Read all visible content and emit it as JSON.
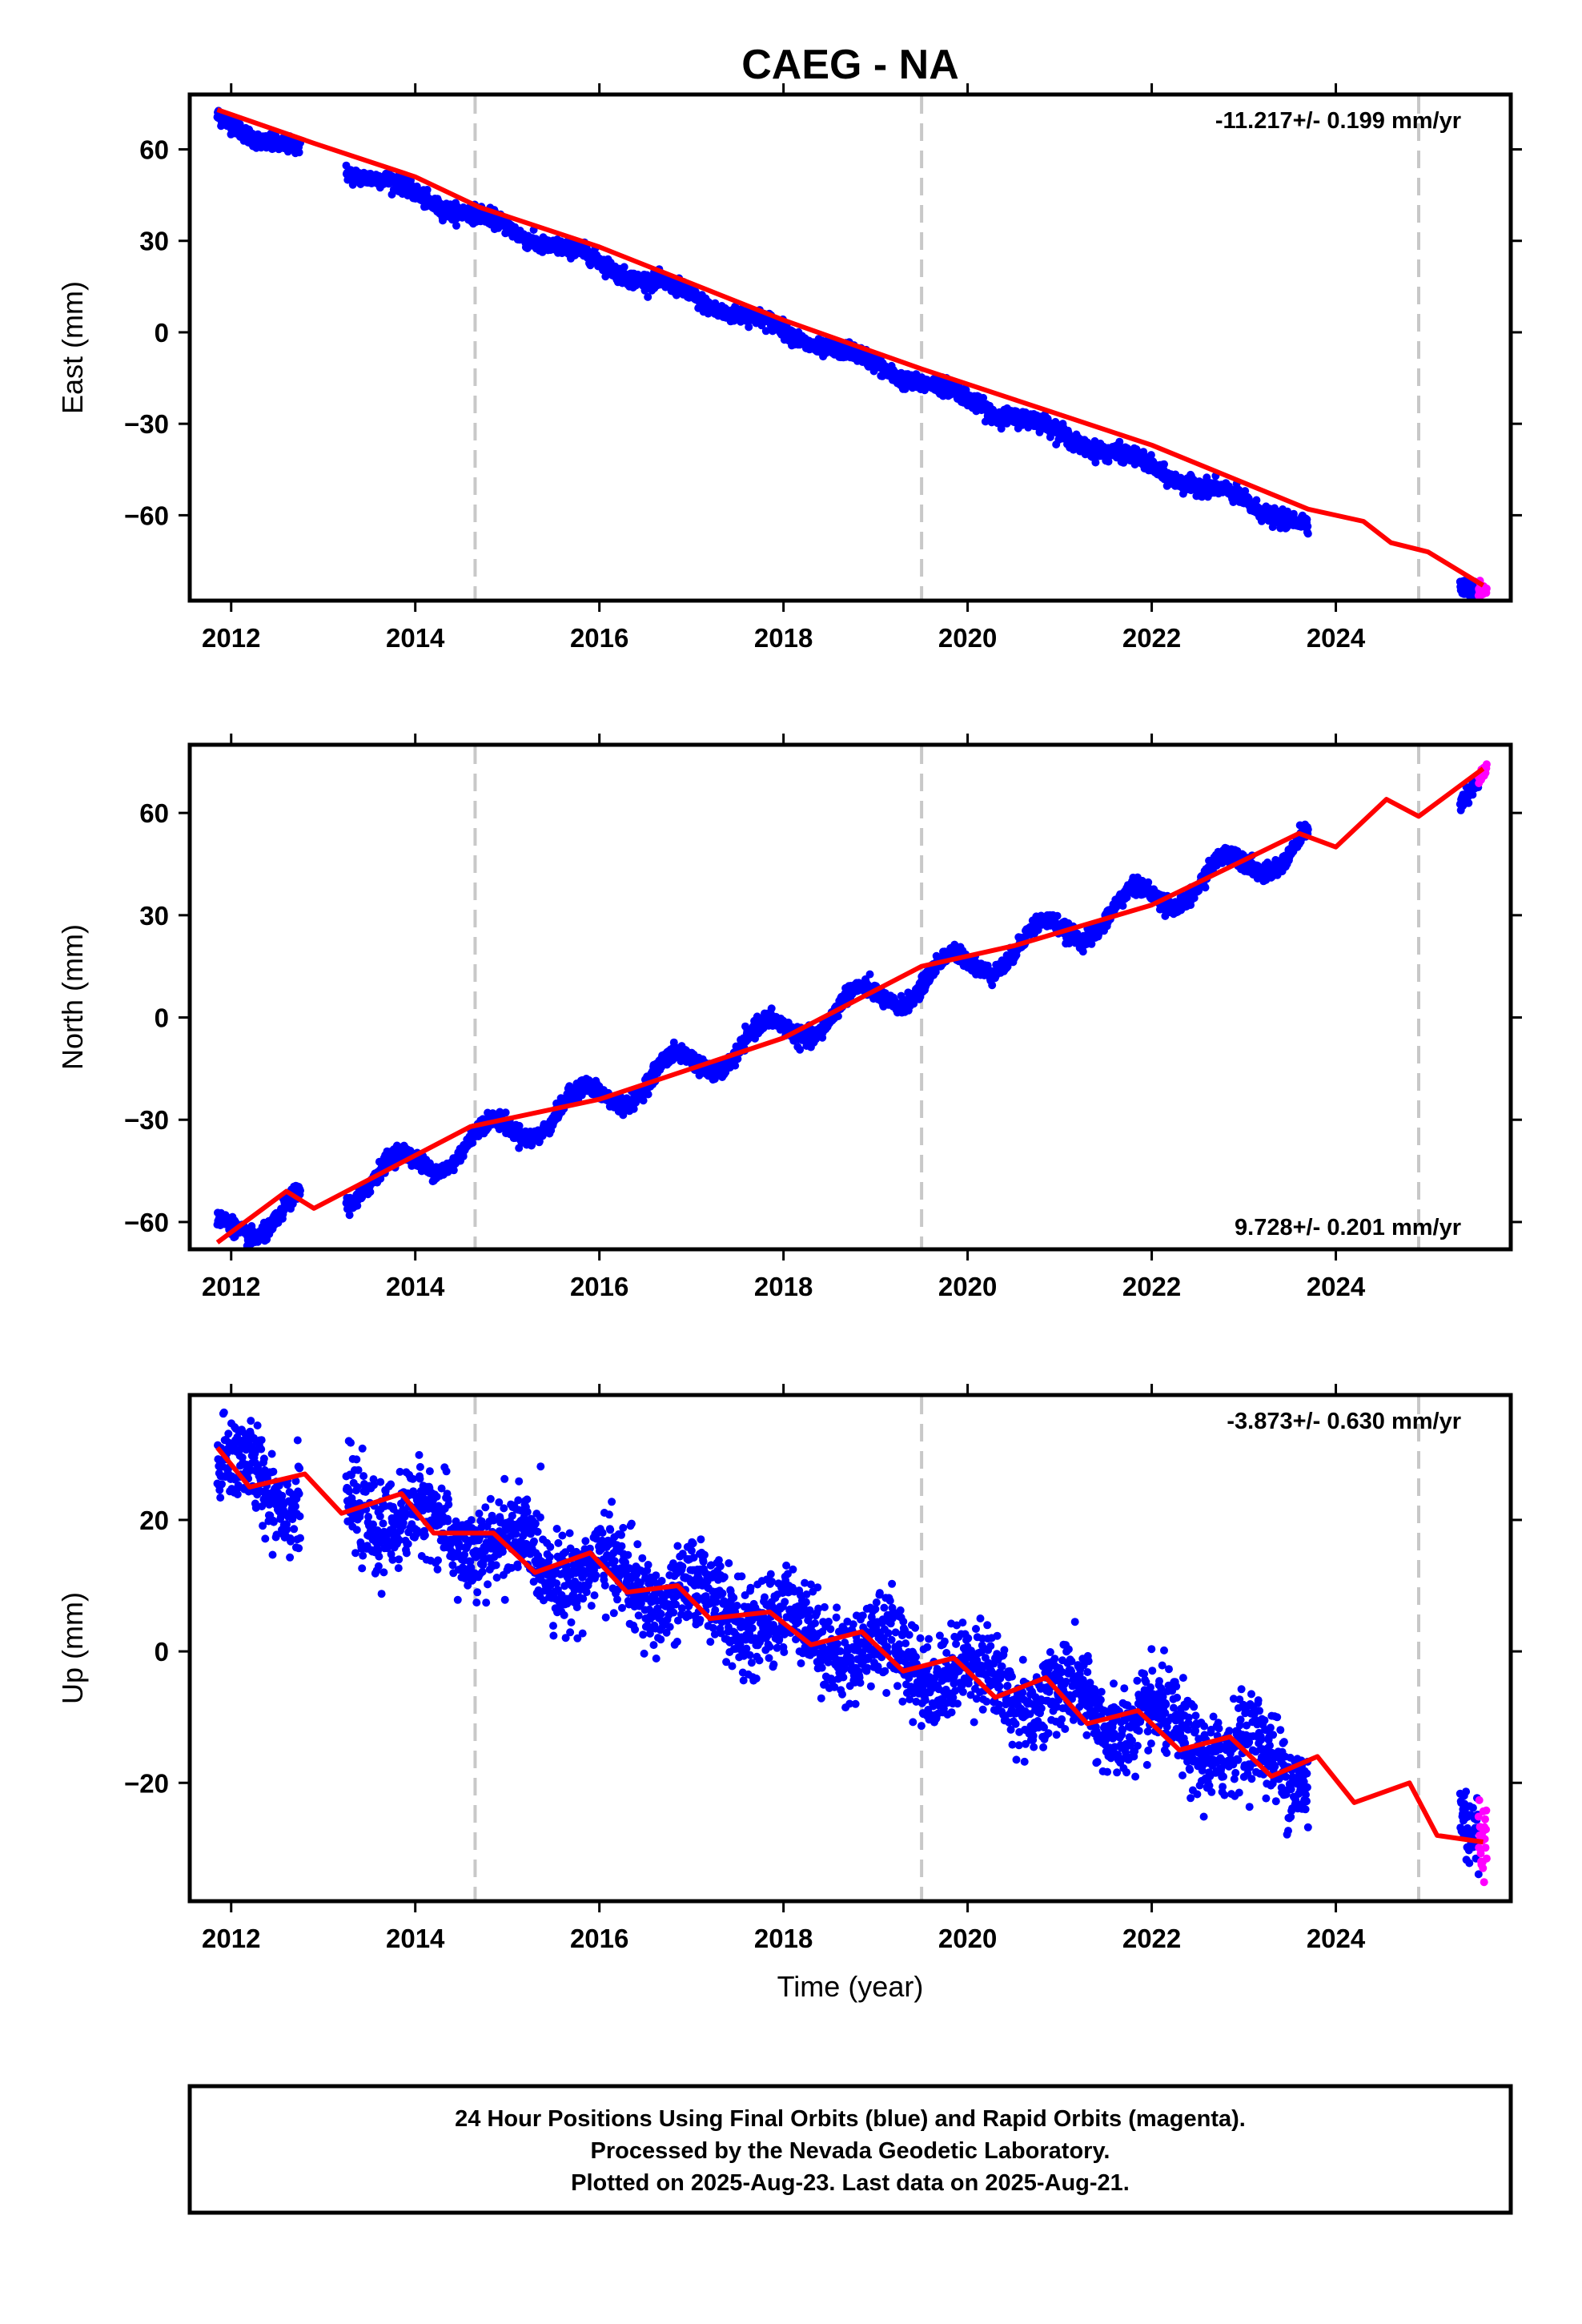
{
  "title": "CAEG - NA",
  "xlabel": "Time (year)",
  "footer": [
    "24 Hour Positions Using Final Orbits (blue) and Rapid Orbits (magenta).",
    "Processed by the Nevada Geodetic Laboratory.",
    "Plotted on 2025-Aug-23. Last data on 2025-Aug-21."
  ],
  "colors": {
    "final_orbits": "#0000ff",
    "rapid_orbits": "#ff00ff",
    "model_fit": "#ff0000",
    "equipment_change_lines": "#c8c8c8"
  },
  "chart_data": [
    {
      "type": "scatter",
      "component": "east",
      "ylabel": "East (mm)",
      "rate_label": "-11.217+/- 0.199 mm/yr",
      "rate_label_position": "top-right",
      "xlim": [
        2011.55,
        2025.9
      ],
      "ylim": [
        -88,
        78
      ],
      "x_ticks": [
        2012,
        2014,
        2016,
        2018,
        2020,
        2022,
        2024
      ],
      "x_tick_labels": [
        "2012",
        "2014",
        "2016",
        "2018",
        "2020",
        "2022",
        "2024"
      ],
      "y_ticks": [
        60,
        30,
        0,
        -30,
        -60
      ],
      "y_tick_labels": [
        "60",
        "30",
        "0",
        "−30",
        "−60"
      ],
      "vertical_dashed_lines_at": [
        2014.65,
        2019.5,
        2024.9
      ],
      "trend": {
        "rate_mm_per_yr": -11.217,
        "ref_year": 2018,
        "offset_mm": 0.5
      },
      "seasonal": {
        "annual_amp_mm": 1.6,
        "phase_year": 0.55
      },
      "noise_mm": 1.3,
      "final_segments": [
        [
          2011.85,
          2012.75
        ],
        [
          2013.25,
          2023.7
        ],
        [
          2025.35,
          2025.55
        ]
      ],
      "rapid_segment": [
        2025.55,
        2025.64
      ],
      "model_line": [
        [
          2011.85,
          73
        ],
        [
          2012.9,
          62
        ],
        [
          2014.0,
          51
        ],
        [
          2014.7,
          41
        ],
        [
          2016.0,
          28
        ],
        [
          2018.0,
          4
        ],
        [
          2019.5,
          -12
        ],
        [
          2020.5,
          -22
        ],
        [
          2022.0,
          -37
        ],
        [
          2023.7,
          -58
        ],
        [
          2024.3,
          -62
        ],
        [
          2024.6,
          -69
        ],
        [
          2025.0,
          -72
        ],
        [
          2025.6,
          -83
        ]
      ]
    },
    {
      "type": "scatter",
      "component": "north",
      "ylabel": "North (mm)",
      "rate_label": "9.728+/- 0.201 mm/yr",
      "rate_label_position": "bottom-right",
      "xlim": [
        2011.55,
        2025.9
      ],
      "ylim": [
        -68,
        80
      ],
      "x_ticks": [
        2012,
        2014,
        2016,
        2018,
        2020,
        2022,
        2024
      ],
      "x_tick_labels": [
        "2012",
        "2014",
        "2016",
        "2018",
        "2020",
        "2022",
        "2024"
      ],
      "y_ticks": [
        60,
        30,
        0,
        -30,
        -60
      ],
      "y_tick_labels": [
        "60",
        "30",
        "0",
        "−30",
        "−60"
      ],
      "vertical_dashed_lines_at": [
        2014.65,
        2019.5,
        2024.9
      ],
      "trend": {
        "rate_mm_per_yr": 9.728,
        "ref_year": 2018,
        "offset_mm": -4
      },
      "seasonal": {
        "annual_amp_mm": 5.0,
        "phase_year": 0.55
      },
      "noise_mm": 1.2,
      "final_segments": [
        [
          2011.85,
          2012.75
        ],
        [
          2013.25,
          2023.7
        ],
        [
          2025.35,
          2025.55
        ]
      ],
      "rapid_segment": [
        2025.55,
        2025.64
      ],
      "model_line": [
        [
          2011.85,
          -66
        ],
        [
          2012.6,
          -51
        ],
        [
          2012.9,
          -56
        ],
        [
          2014.6,
          -32
        ],
        [
          2016.0,
          -24
        ],
        [
          2018.0,
          -6
        ],
        [
          2019.5,
          15
        ],
        [
          2020.5,
          21
        ],
        [
          2022.0,
          33
        ],
        [
          2023.6,
          54
        ],
        [
          2024.0,
          50
        ],
        [
          2024.55,
          64
        ],
        [
          2024.9,
          59
        ],
        [
          2025.6,
          73
        ]
      ]
    },
    {
      "type": "scatter",
      "component": "up",
      "ylabel": "Up (mm)",
      "rate_label": "-3.873+/- 0.630 mm/yr",
      "rate_label_position": "top-right",
      "xlim": [
        2011.55,
        2025.9
      ],
      "ylim": [
        -38,
        39
      ],
      "x_ticks": [
        2012,
        2014,
        2016,
        2018,
        2020,
        2022,
        2024
      ],
      "x_tick_labels": [
        "2012",
        "2014",
        "2016",
        "2018",
        "2020",
        "2022",
        "2024"
      ],
      "y_ticks": [
        20,
        0,
        -20
      ],
      "y_tick_labels": [
        "20",
        "0",
        "−20"
      ],
      "vertical_dashed_lines_at": [
        2014.65,
        2019.5,
        2024.9
      ],
      "trend": {
        "rate_mm_per_yr": -3.873,
        "ref_year": 2018,
        "offset_mm": 4
      },
      "seasonal": {
        "annual_amp_mm": 3.0,
        "phase_year": 0.85
      },
      "noise_mm": 3.3,
      "final_segments": [
        [
          2011.85,
          2012.75
        ],
        [
          2013.25,
          2023.7
        ],
        [
          2025.35,
          2025.55
        ]
      ],
      "rapid_segment": [
        2025.55,
        2025.64
      ],
      "model_line": [
        [
          2011.85,
          31
        ],
        [
          2012.2,
          25
        ],
        [
          2012.8,
          27
        ],
        [
          2013.2,
          21
        ],
        [
          2013.85,
          24
        ],
        [
          2014.2,
          18
        ],
        [
          2014.85,
          18
        ],
        [
          2015.3,
          12
        ],
        [
          2015.9,
          15
        ],
        [
          2016.3,
          9
        ],
        [
          2016.85,
          10
        ],
        [
          2017.2,
          5
        ],
        [
          2017.85,
          6
        ],
        [
          2018.3,
          1
        ],
        [
          2018.85,
          3
        ],
        [
          2019.3,
          -3
        ],
        [
          2019.85,
          -1
        ],
        [
          2020.3,
          -7
        ],
        [
          2020.85,
          -4
        ],
        [
          2021.3,
          -11
        ],
        [
          2021.85,
          -9
        ],
        [
          2022.3,
          -15
        ],
        [
          2022.85,
          -13
        ],
        [
          2023.3,
          -19
        ],
        [
          2023.8,
          -16
        ],
        [
          2024.2,
          -23
        ],
        [
          2024.8,
          -20
        ],
        [
          2025.1,
          -28
        ],
        [
          2025.6,
          -29
        ]
      ]
    }
  ]
}
